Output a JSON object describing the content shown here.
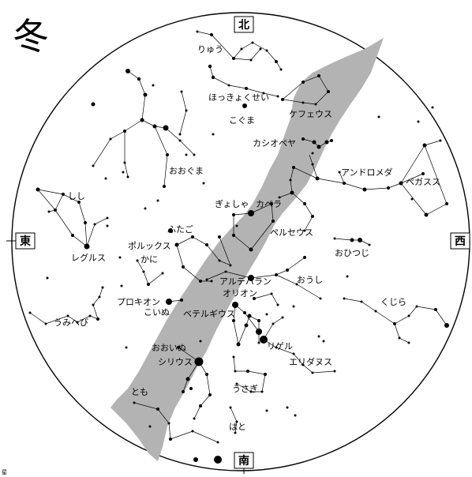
{
  "season_title": "冬",
  "directions": {
    "north": "北",
    "south": "南",
    "east": "東",
    "west": "西"
  },
  "footer_char": "星",
  "constellations": [
    "りゅう",
    "ほっきょくせい",
    "こぐま",
    "ケフェウス",
    "カシオペヤ",
    "アンドロメダ",
    "ペガスス",
    "おおぐま",
    "しし",
    "レグルス",
    "ぎょしゃ",
    "カペラ",
    "ペルセウス",
    "ふたご",
    "ポルックス",
    "かに",
    "おひつじ",
    "アルデバラン",
    "おうし",
    "オリオン",
    "プロキオン",
    "こいぬ",
    "ベテルギウス",
    "くじら",
    "うみへび",
    "リゲル",
    "おおいぬ",
    "シリウス",
    "エリダヌス",
    "うさぎ",
    "とも",
    "はと"
  ],
  "colors": {
    "milky_way": "#b3b3b3",
    "ink": "#000000",
    "background": "#ffffff"
  }
}
